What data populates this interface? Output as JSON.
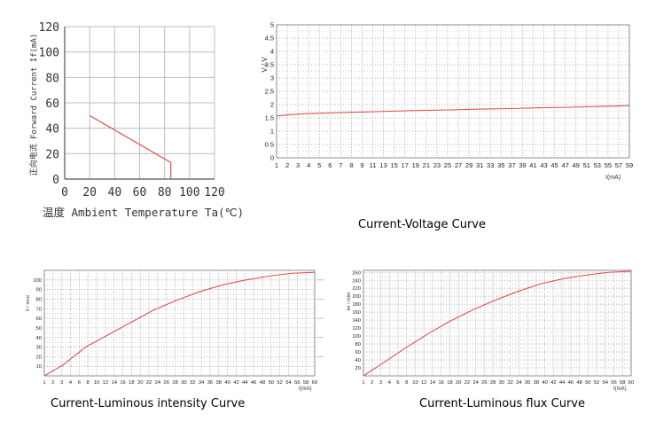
{
  "chart_data": [
    {
      "type": "line",
      "title": "",
      "xlabel": "温度 Ambient Temperature Ta(℃)",
      "ylabel": "正向电流 Forward Current If(mA)",
      "xlim": [
        0,
        120
      ],
      "ylim": [
        0,
        120
      ],
      "xticks": [
        0,
        20,
        40,
        60,
        80,
        100,
        120
      ],
      "yticks": [
        0,
        20,
        40,
        60,
        80,
        100,
        120
      ],
      "grid": true,
      "line_color": "#e05050",
      "x": [
        20,
        85,
        85
      ],
      "y": [
        50,
        13,
        0
      ]
    },
    {
      "type": "line",
      "title": "Current-Voltage Curve",
      "xlabel": "I(mA)",
      "ylabel": "V / V",
      "xlim": [
        1,
        60
      ],
      "ylim": [
        0,
        5
      ],
      "xtick_labels": [
        "1",
        "2",
        "3",
        "4",
        "5",
        "6",
        "7",
        "8",
        "9",
        "11",
        "13",
        "15",
        "17",
        "19",
        "21",
        "23",
        "25",
        "27",
        "29",
        "31",
        "33",
        "35",
        "37",
        "39",
        "41",
        "43",
        "45",
        "47",
        "49",
        "51",
        "53",
        "55",
        "57",
        "59"
      ],
      "ytick_labels": [
        "0",
        "0.5",
        "1",
        "1.5",
        "2",
        "2.5",
        "3",
        "3.5",
        "4",
        "4.5",
        "5"
      ],
      "grid": true,
      "line_color": "#e05050",
      "x": [
        1,
        3,
        6,
        10,
        15,
        20,
        25,
        30,
        35,
        40,
        45,
        50,
        55,
        60
      ],
      "y": [
        1.57,
        1.62,
        1.66,
        1.69,
        1.72,
        1.75,
        1.78,
        1.8,
        1.83,
        1.85,
        1.88,
        1.9,
        1.93,
        1.96
      ]
    },
    {
      "type": "line",
      "title": "Current-Luminous intensity Curve",
      "xlabel": "I(mA)",
      "ylabel": "lI / mcd",
      "xlim": [
        1,
        60
      ],
      "ylim": [
        0,
        110
      ],
      "xtick_labels": [
        "1",
        "2",
        "3",
        "4",
        "6",
        "8",
        "10",
        "12",
        "14",
        "16",
        "18",
        "20",
        "22",
        "24",
        "26",
        "28",
        "30",
        "32",
        "34",
        "36",
        "38",
        "40",
        "42",
        "44",
        "46",
        "48",
        "50",
        "52",
        "54",
        "56",
        "58",
        "60"
      ],
      "ytick_labels": [
        "10",
        "20",
        "30",
        "40",
        "50",
        "60",
        "70",
        "80",
        "90",
        "100"
      ],
      "grid": true,
      "line_color": "#e05050",
      "x": [
        1,
        5,
        10,
        15,
        20,
        25,
        30,
        35,
        40,
        45,
        50,
        55,
        60
      ],
      "y": [
        0,
        11,
        30,
        43,
        56,
        69,
        79,
        88,
        95,
        100,
        104,
        107,
        108
      ]
    },
    {
      "type": "line",
      "title": "Current-Luminous flux Curve",
      "xlabel": "I(mA)",
      "ylabel": "lm / mlm",
      "xlim": [
        1,
        60
      ],
      "ylim": [
        0,
        265
      ],
      "xtick_labels": [
        "1",
        "2",
        "3",
        "4",
        "6",
        "8",
        "10",
        "12",
        "14",
        "16",
        "18",
        "20",
        "22",
        "24",
        "26",
        "28",
        "30",
        "32",
        "34",
        "36",
        "38",
        "40",
        "42",
        "44",
        "46",
        "48",
        "50",
        "52",
        "54",
        "56",
        "58",
        "60"
      ],
      "ytick_labels": [
        "20",
        "40",
        "60",
        "80",
        "100",
        "120",
        "140",
        "160",
        "180",
        "200",
        "220",
        "240",
        "260"
      ],
      "grid": true,
      "line_color": "#e05050",
      "x": [
        1,
        5,
        10,
        15,
        20,
        25,
        30,
        35,
        40,
        45,
        50,
        55,
        60
      ],
      "y": [
        0,
        30,
        68,
        104,
        137,
        165,
        190,
        212,
        231,
        244,
        253,
        260,
        263
      ]
    }
  ]
}
